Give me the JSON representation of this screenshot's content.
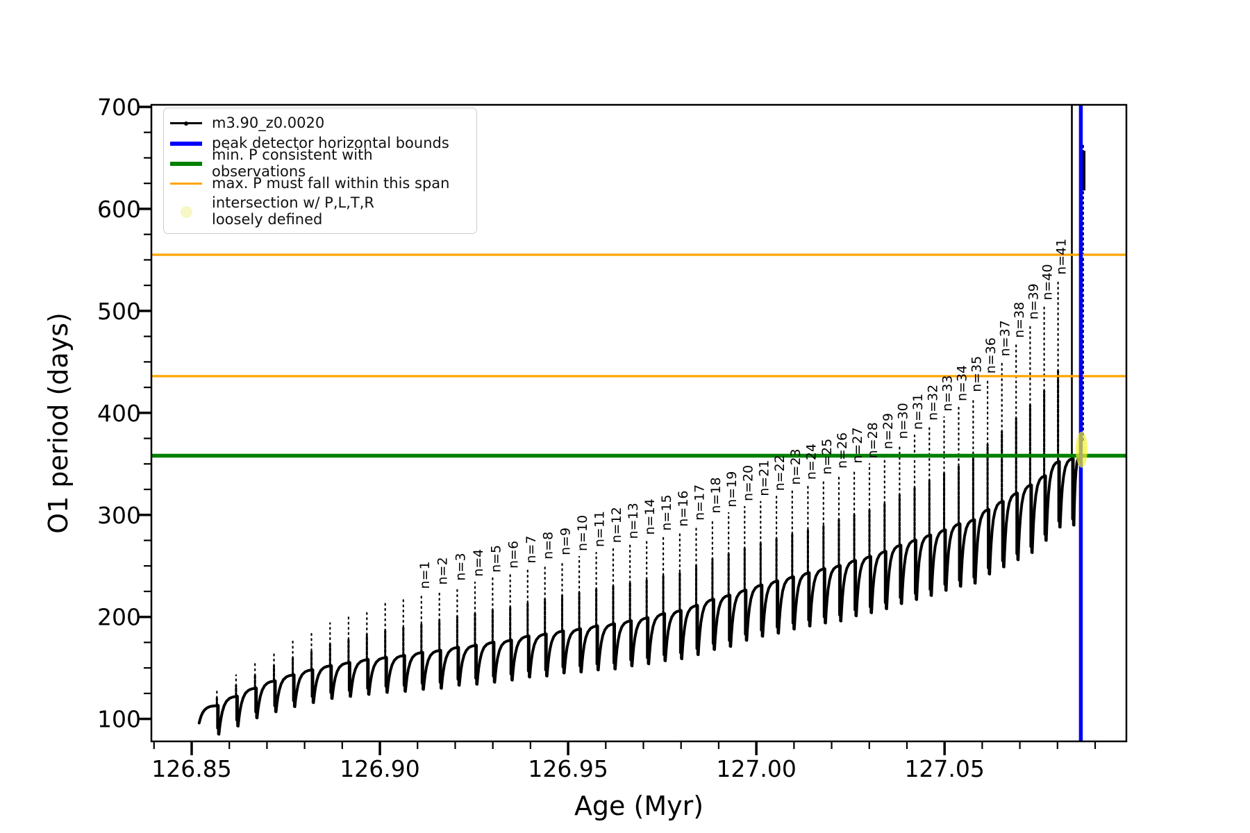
{
  "axes": {
    "xlabel": "Age (Myr)",
    "ylabel": "O1 period (days)",
    "xlim": [
      126.8393,
      127.0983
    ],
    "ylim": [
      78,
      702
    ],
    "x_major_ticks": [
      {
        "v": 126.85,
        "label": "126.85"
      },
      {
        "v": 126.9,
        "label": "126.90"
      },
      {
        "v": 126.95,
        "label": "126.95"
      },
      {
        "v": 127.0,
        "label": "127.00"
      },
      {
        "v": 127.05,
        "label": "127.05"
      }
    ],
    "x_minor_ticks": [
      126.84,
      126.86,
      126.87,
      126.88,
      126.89,
      126.91,
      126.92,
      126.93,
      126.94,
      126.96,
      126.97,
      126.98,
      126.99,
      127.01,
      127.02,
      127.03,
      127.04,
      127.06,
      127.07,
      127.08,
      127.09
    ],
    "y_major_ticks": [
      {
        "v": 100,
        "label": "100"
      },
      {
        "v": 200,
        "label": "200"
      },
      {
        "v": 300,
        "label": "300"
      },
      {
        "v": 400,
        "label": "400"
      },
      {
        "v": 500,
        "label": "500"
      },
      {
        "v": 600,
        "label": "600"
      },
      {
        "v": 700,
        "label": "700"
      }
    ],
    "y_minor_ticks": [
      125,
      150,
      175,
      225,
      250,
      275,
      325,
      350,
      375,
      425,
      450,
      475,
      525,
      550,
      575,
      625,
      650,
      675
    ]
  },
  "legend": {
    "items": [
      {
        "label": "m3.90_z0.0020",
        "type": "line-marker",
        "color": "#000000"
      },
      {
        "label": "peak detector horizontal bounds",
        "type": "thick-line",
        "color": "#0000ff"
      },
      {
        "label": "min. P consistent with observations",
        "type": "thick-line",
        "color": "#008000"
      },
      {
        "label": "max. P must fall within this span",
        "type": "line",
        "color": "#ffa500"
      },
      {
        "label": "intersection w/ P,L,T,R\nloosely defined",
        "type": "marker",
        "color": "#f7f7c6"
      }
    ]
  },
  "chart_data": {
    "type": "line",
    "series_name": "m3.90_z0.0020",
    "title": "",
    "xlabel": "Age (Myr)",
    "ylabel": "O1 period (days)",
    "grid": false,
    "legend_position": "upper left",
    "series_color": "#000000",
    "cycles_note": "sawtooth pulsation cycles: each row = one cycle; spike at 'age' rises to 'spike_peak', curve falls to 'dip_min' then arcs up to next cycle's 'arc_top'",
    "cycles_columns": [
      "age",
      "dip_min",
      "arc_top",
      "spike_peak",
      "label"
    ],
    "cycles": [
      [
        126.8567,
        85,
        113,
        128,
        null
      ],
      [
        126.86178,
        93,
        122,
        143,
        null
      ],
      [
        126.86683,
        101,
        130,
        155,
        null
      ],
      [
        126.87186,
        107,
        137,
        167,
        null
      ],
      [
        126.87685,
        112,
        143,
        176,
        null
      ],
      [
        126.88182,
        116,
        148,
        186,
        null
      ],
      [
        126.88676,
        120,
        152,
        194,
        null
      ],
      [
        126.89167,
        122,
        155,
        201,
        null
      ],
      [
        126.89655,
        124,
        158,
        207,
        null
      ],
      [
        126.90141,
        126,
        160,
        213,
        null
      ],
      [
        126.90623,
        127,
        162,
        218,
        null
      ],
      [
        126.91103,
        129,
        165,
        222,
        "n=1"
      ],
      [
        126.9158,
        130,
        167,
        226,
        "n=2"
      ],
      [
        126.92055,
        133,
        170,
        230,
        "n=3"
      ],
      [
        126.92526,
        134,
        172,
        234,
        "n=4"
      ],
      [
        126.92995,
        136,
        175,
        238,
        "n=5"
      ],
      [
        126.93461,
        138,
        177,
        242,
        "n=6"
      ],
      [
        126.93924,
        141,
        181,
        247,
        "n=7"
      ],
      [
        126.94384,
        142,
        183,
        251,
        "n=8"
      ],
      [
        126.94842,
        145,
        186,
        255,
        "n=9"
      ],
      [
        126.95296,
        146,
        188,
        259,
        "n=10"
      ],
      [
        126.95748,
        148,
        191,
        263,
        "n=11"
      ],
      [
        126.96197,
        149,
        193,
        267,
        "n=12"
      ],
      [
        126.96644,
        152,
        196,
        271,
        "n=13"
      ],
      [
        126.97087,
        154,
        199,
        275,
        "n=14"
      ],
      [
        126.97528,
        157,
        203,
        279,
        "n=15"
      ],
      [
        126.97966,
        159,
        206,
        283,
        "n=16"
      ],
      [
        126.98401,
        163,
        211,
        289,
        "n=17"
      ],
      [
        126.98833,
        168,
        217,
        296,
        "n=18"
      ],
      [
        126.99263,
        171,
        221,
        302,
        "n=19"
      ],
      [
        126.9969,
        177,
        226,
        308,
        "n=20"
      ],
      [
        127.00114,
        181,
        231,
        313,
        "n=21"
      ],
      [
        127.00535,
        184,
        235,
        318,
        "n=22"
      ],
      [
        127.00954,
        188,
        239,
        324,
        "n=23"
      ],
      [
        127.0137,
        191,
        243,
        329,
        "n=24"
      ],
      [
        127.01783,
        194,
        247,
        334,
        "n=25"
      ],
      [
        127.02193,
        196,
        250,
        340,
        "n=26"
      ],
      [
        127.026,
        201,
        255,
        345,
        "n=27"
      ],
      [
        127.03005,
        204,
        259,
        350,
        "n=28"
      ],
      [
        127.03407,
        208,
        264,
        359,
        "n=29"
      ],
      [
        127.03806,
        213,
        270,
        369,
        "n=30"
      ],
      [
        127.04203,
        217,
        275,
        378,
        "n=31"
      ],
      [
        127.04596,
        221,
        280,
        387,
        "n=32"
      ],
      [
        127.04987,
        226,
        285,
        396,
        "n=33"
      ],
      [
        127.05375,
        230,
        291,
        406,
        "n=34"
      ],
      [
        127.05761,
        233,
        295,
        415,
        "n=35"
      ],
      [
        127.06143,
        242,
        305,
        433,
        "n=36"
      ],
      [
        127.06523,
        249,
        313,
        450,
        "n=37"
      ],
      [
        127.069,
        256,
        321,
        468,
        "n=38"
      ],
      [
        127.07274,
        263,
        329,
        486,
        "n=39"
      ],
      [
        127.07646,
        275,
        338,
        505,
        "n=40"
      ],
      [
        127.08015,
        288,
        352,
        530,
        "n=41"
      ],
      [
        127.08381,
        290,
        355,
        700,
        null
      ]
    ],
    "lead_in": {
      "age": 126.852,
      "period": 96
    },
    "final_descent": {
      "age": 127.0868,
      "from": 662,
      "to": 372,
      "blob_top": 657,
      "blob_bottom": 618
    },
    "hlines": [
      {
        "name": "max-P-span-upper",
        "value": 555,
        "color": "#ffa500",
        "lw": 3.2
      },
      {
        "name": "max-P-span-lower",
        "value": 436,
        "color": "#ffa500",
        "lw": 3.2
      },
      {
        "name": "min-P-observations",
        "value": 358,
        "color": "#008000",
        "lw": 5.5
      }
    ],
    "vlines": [
      {
        "name": "peak-detector-bound",
        "value": 127.0862,
        "color": "#0000ff",
        "lw": 5.5
      }
    ],
    "intersection_marker": {
      "age": 127.0864,
      "period": 364,
      "half_height_days": 17,
      "color": "#f4f42a",
      "opacity": 0.7
    }
  }
}
